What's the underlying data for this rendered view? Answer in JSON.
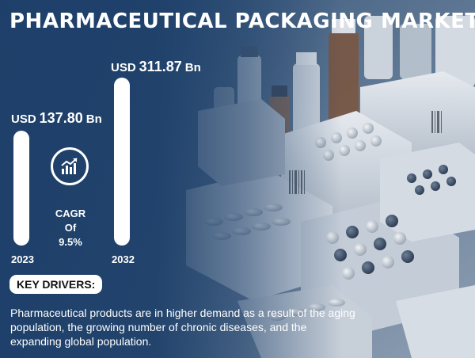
{
  "title": "PHARMACEUTICAL PACKAGING MARKET",
  "market": {
    "start": {
      "currency": "USD",
      "value": "137.80",
      "unit": "Bn",
      "year": "2023"
    },
    "end": {
      "currency": "USD",
      "value": "311.87",
      "unit": "Bn",
      "year": "2032"
    },
    "cagr_label": "CAGR",
    "cagr_of": "Of",
    "cagr_value": "9.5%"
  },
  "key_drivers": {
    "heading": "KEY DRIVERS:",
    "text": "Pharmaceutical products are in higher demand as a result of the aging population, the growing number of chronic diseases, and the expanding global population."
  },
  "icons": {
    "cagr_icon": "growth-chart-icon"
  },
  "colors": {
    "background": "#1f3f66",
    "accent": "#ffffff"
  }
}
